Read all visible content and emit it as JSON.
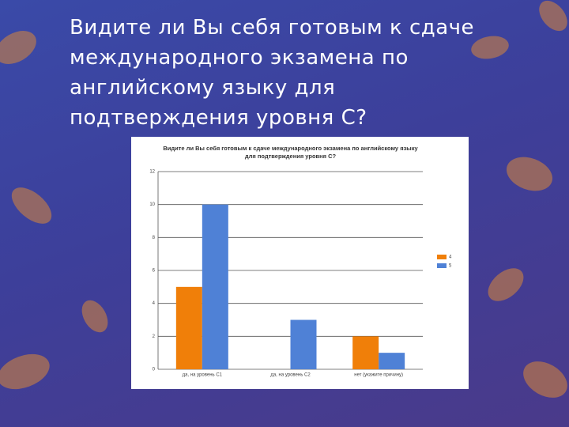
{
  "slide_title": "Видите ли Вы себя готовым к сдаче международного экзамена по английскому языку для подтверждения уровня С?",
  "chart_data": {
    "type": "bar",
    "title": "Видите ли Вы себя готовым к сдаче международного экзамена по английскому языку для подтверждения уровня С?",
    "categories": [
      "да, на уровень С1",
      "да, на уровень С2",
      "нет (укажите причину)"
    ],
    "series": [
      {
        "name": "4",
        "color": "#f07f09",
        "values": [
          5,
          0,
          2
        ]
      },
      {
        "name": "5",
        "color": "#4f81d6",
        "values": [
          10,
          3,
          1
        ]
      }
    ],
    "ylim": [
      0,
      12
    ],
    "yticks": [
      0,
      2,
      4,
      6,
      8,
      10,
      12
    ],
    "grid": true,
    "legend": "right"
  }
}
